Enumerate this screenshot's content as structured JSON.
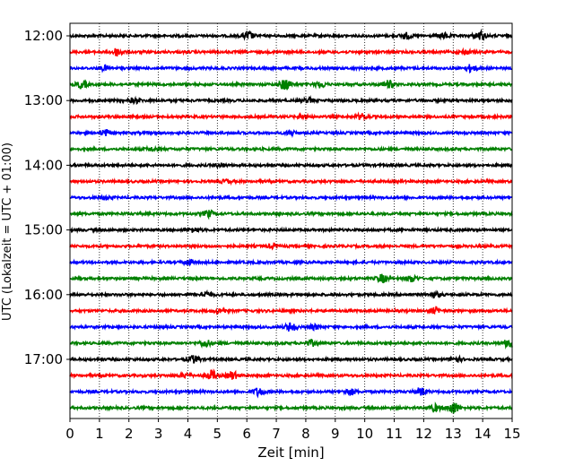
{
  "chart_data": {
    "type": "line",
    "title": "",
    "xlabel": "Zeit  [min]",
    "ylabel": "UTC (Lokalzeit = UTC + 01:00)",
    "xlim": [
      0,
      15
    ],
    "x_ticks": [
      0,
      1,
      2,
      3,
      4,
      5,
      6,
      7,
      8,
      9,
      10,
      11,
      12,
      13,
      14,
      15
    ],
    "grid": "vertical dotted at each minute",
    "y_tick_labels": [
      "12:00",
      "13:00",
      "14:00",
      "15:00",
      "16:00",
      "17:00"
    ],
    "trace_colors": [
      "#000000",
      "#ff0000",
      "#0000ff",
      "#008000"
    ],
    "traces": [
      {
        "start": "12:00",
        "color": "#000000",
        "events": [
          [
            6.05,
            1.6
          ],
          [
            11.4,
            1.2
          ],
          [
            13.9,
            1.8
          ],
          [
            12.7,
            1.0
          ]
        ]
      },
      {
        "start": "12:15",
        "color": "#ff0000",
        "events": [
          [
            1.6,
            1.6
          ],
          [
            13.4,
            0.9
          ]
        ]
      },
      {
        "start": "12:30",
        "color": "#0000ff",
        "events": [
          [
            13.6,
            1.4
          ],
          [
            1.2,
            0.9
          ]
        ]
      },
      {
        "start": "12:45",
        "color": "#008000",
        "events": [
          [
            0.4,
            1.5
          ],
          [
            7.3,
            2.4
          ],
          [
            8.5,
            1.3
          ],
          [
            10.8,
            1.5
          ]
        ]
      },
      {
        "start": "13:00",
        "color": "#000000",
        "events": [
          [
            2.2,
            0.9
          ],
          [
            8.1,
            0.8
          ]
        ]
      },
      {
        "start": "13:15",
        "color": "#ff0000",
        "events": [
          [
            7.9,
            0.9
          ],
          [
            9.9,
            1.1
          ]
        ]
      },
      {
        "start": "13:30",
        "color": "#0000ff",
        "events": [
          [
            1.2,
            1.2
          ],
          [
            7.5,
            0.8
          ]
        ]
      },
      {
        "start": "13:45",
        "color": "#008000",
        "events": [
          [
            2.8,
            0.7
          ]
        ]
      },
      {
        "start": "14:00",
        "color": "#000000",
        "events": [
          [
            5.1,
            0.7
          ]
        ]
      },
      {
        "start": "14:15",
        "color": "#ff0000",
        "events": [
          [
            5.3,
            0.6
          ]
        ]
      },
      {
        "start": "14:30",
        "color": "#0000ff",
        "events": [
          [
            1.2,
            0.7
          ]
        ]
      },
      {
        "start": "14:45",
        "color": "#008000",
        "events": [
          [
            4.7,
            1.3
          ]
        ]
      },
      {
        "start": "15:00",
        "color": "#000000",
        "events": [
          [
            4.2,
            0.8
          ]
        ]
      },
      {
        "start": "15:15",
        "color": "#ff0000",
        "events": [
          [
            6.9,
            0.8
          ]
        ]
      },
      {
        "start": "15:30",
        "color": "#0000ff",
        "events": [
          [
            4.0,
            1.0
          ]
        ]
      },
      {
        "start": "15:45",
        "color": "#008000",
        "events": [
          [
            10.6,
            1.6
          ],
          [
            11.6,
            1.3
          ]
        ]
      },
      {
        "start": "16:00",
        "color": "#000000",
        "events": [
          [
            4.6,
            1.2
          ],
          [
            12.4,
            1.0
          ]
        ]
      },
      {
        "start": "16:15",
        "color": "#ff0000",
        "events": [
          [
            5.1,
            1.0
          ],
          [
            12.4,
            1.2
          ]
        ]
      },
      {
        "start": "16:30",
        "color": "#0000ff",
        "events": [
          [
            7.5,
            1.8
          ],
          [
            8.3,
            0.9
          ]
        ]
      },
      {
        "start": "16:45",
        "color": "#008000",
        "events": [
          [
            4.6,
            1.4
          ],
          [
            8.2,
            1.1
          ],
          [
            14.9,
            1.8
          ]
        ]
      },
      {
        "start": "17:00",
        "color": "#000000",
        "events": [
          [
            4.2,
            1.4
          ],
          [
            13.1,
            1.0
          ]
        ]
      },
      {
        "start": "17:15",
        "color": "#ff0000",
        "events": [
          [
            4.8,
            2.0
          ],
          [
            5.5,
            1.6
          ],
          [
            3.9,
            0.8
          ]
        ]
      },
      {
        "start": "17:30",
        "color": "#0000ff",
        "events": [
          [
            6.4,
            1.6
          ],
          [
            9.5,
            1.3
          ],
          [
            11.9,
            1.6
          ]
        ]
      },
      {
        "start": "17:45",
        "color": "#008000",
        "events": [
          [
            13.0,
            2.5
          ],
          [
            12.4,
            1.2
          ]
        ]
      }
    ]
  }
}
